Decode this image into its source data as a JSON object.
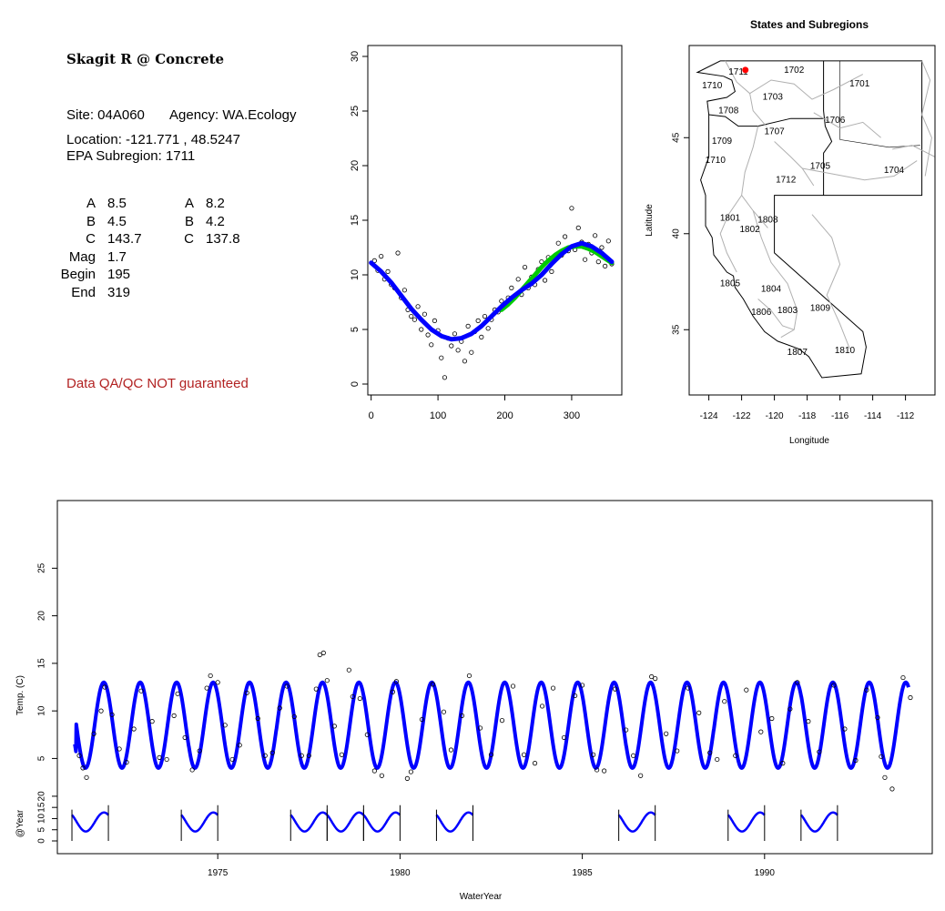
{
  "info": {
    "site_title": "Skagit R @ Concrete",
    "site_line": "Site: 04A060",
    "agency_line": "Agency: WA.Ecology",
    "location_line": "Location: -121.771 , 48.5247",
    "subregion_line": "EPA Subregion: 1711",
    "params_left": [
      {
        "label": "A",
        "value": "8.5"
      },
      {
        "label": "B",
        "value": "4.5"
      },
      {
        "label": "C",
        "value": "143.7"
      },
      {
        "label": "Mag",
        "value": "1.7"
      },
      {
        "label": "Begin",
        "value": "195"
      },
      {
        "label": "End",
        "value": "319"
      }
    ],
    "params_right": [
      {
        "label": "A",
        "value": "8.2"
      },
      {
        "label": "B",
        "value": "4.2"
      },
      {
        "label": "C",
        "value": "137.8"
      }
    ],
    "qa_note": "Data QA/QC NOT guaranteed",
    "qa_color": "#b22222"
  },
  "chart_data": [
    {
      "type": "scatter",
      "title": "",
      "xlabel": "",
      "ylabel": "",
      "xlim": [
        -5,
        375
      ],
      "ylim": [
        -1,
        31
      ],
      "xticks": [
        0,
        100,
        200,
        300
      ],
      "yticks": [
        0,
        5,
        10,
        15,
        20,
        25,
        30
      ],
      "grid": false,
      "series": [
        {
          "kind": "points",
          "marker": "open-circle",
          "color": "#000000",
          "x": [
            5,
            10,
            15,
            20,
            25,
            30,
            35,
            40,
            45,
            50,
            55,
            60,
            65,
            70,
            75,
            80,
            85,
            90,
            95,
            100,
            105,
            110,
            115,
            120,
            125,
            130,
            135,
            140,
            145,
            150,
            155,
            160,
            165,
            170,
            175,
            180,
            185,
            190,
            195,
            200,
            205,
            210,
            215,
            220,
            225,
            230,
            235,
            240,
            245,
            250,
            255,
            260,
            265,
            270,
            275,
            280,
            285,
            290,
            295,
            300,
            305,
            310,
            315,
            320,
            325,
            330,
            335,
            340,
            345,
            350,
            355,
            360
          ],
          "y": [
            11.3,
            10.4,
            11.7,
            9.6,
            10.3,
            9.1,
            8.8,
            12.0,
            7.9,
            8.6,
            6.8,
            6.2,
            5.9,
            7.1,
            5.0,
            6.4,
            4.5,
            3.6,
            5.8,
            4.9,
            2.4,
            0.6,
            4.2,
            3.5,
            4.6,
            3.1,
            3.9,
            2.1,
            5.3,
            2.9,
            4.8,
            5.8,
            4.3,
            6.2,
            5.1,
            5.9,
            6.8,
            6.6,
            7.6,
            7.1,
            7.9,
            8.8,
            8.1,
            9.6,
            8.2,
            10.7,
            8.8,
            9.8,
            9.1,
            10.5,
            11.2,
            9.5,
            11.6,
            10.3,
            11.4,
            12.9,
            11.8,
            13.5,
            12.2,
            16.1,
            12.3,
            14.3,
            13.0,
            11.4,
            12.8,
            12.0,
            13.6,
            11.2,
            12.5,
            10.8,
            13.1,
            11.0
          ]
        },
        {
          "kind": "line",
          "name": "",
          "color": "#00cc00",
          "x": [
            195,
            205,
            215,
            225,
            235,
            245,
            255,
            265,
            275,
            285,
            295,
            305,
            315,
            325,
            335,
            345,
            355,
            360
          ],
          "y": [
            6.8,
            7.3,
            7.9,
            8.6,
            9.3,
            10.0,
            10.7,
            11.3,
            11.8,
            12.2,
            12.5,
            12.6,
            12.6,
            12.4,
            12.1,
            11.7,
            11.3,
            11.1
          ]
        },
        {
          "kind": "line",
          "name": "",
          "color": "#0000ff",
          "x": [
            0,
            15,
            30,
            45,
            60,
            75,
            90,
            105,
            120,
            135,
            150,
            165,
            180,
            195,
            210,
            225,
            240,
            255,
            270,
            285,
            300,
            315,
            330,
            345,
            360
          ],
          "y": [
            11.1,
            10.3,
            9.3,
            8.1,
            6.9,
            5.9,
            5.0,
            4.4,
            4.1,
            4.2,
            4.6,
            5.3,
            6.2,
            7.1,
            7.9,
            8.6,
            9.2,
            10.0,
            11.0,
            11.9,
            12.6,
            12.9,
            12.6,
            12.0,
            11.2
          ]
        }
      ]
    },
    {
      "type": "map",
      "title": "States and Subregions",
      "xlabel": "Longitude",
      "ylabel": "Latitude",
      "xlim": [
        -125.2,
        -110.2
      ],
      "ylim": [
        31.6,
        49.8
      ],
      "xticks": [
        -124,
        -122,
        -120,
        -118,
        -116,
        -114,
        -112
      ],
      "yticks": [
        35,
        40,
        45
      ],
      "site_marker": {
        "lon": -121.771,
        "lat": 48.5247,
        "color": "#ff0000"
      },
      "region_labels": [
        {
          "text": "1711",
          "lon": -122.2,
          "lat": 48.4
        },
        {
          "text": "1702",
          "lon": -118.8,
          "lat": 48.5
        },
        {
          "text": "1701",
          "lon": -114.8,
          "lat": 47.8
        },
        {
          "text": "1710",
          "lon": -123.8,
          "lat": 47.7
        },
        {
          "text": "1703",
          "lon": -120.1,
          "lat": 47.1
        },
        {
          "text": "1708",
          "lon": -122.8,
          "lat": 46.4
        },
        {
          "text": "1706",
          "lon": -116.3,
          "lat": 45.9
        },
        {
          "text": "1707",
          "lon": -120.0,
          "lat": 45.3
        },
        {
          "text": "1709",
          "lon": -123.2,
          "lat": 44.8
        },
        {
          "text": "1710",
          "lon": -123.6,
          "lat": 43.8
        },
        {
          "text": "1705",
          "lon": -117.2,
          "lat": 43.5
        },
        {
          "text": "1704",
          "lon": -112.7,
          "lat": 43.3
        },
        {
          "text": "1712",
          "lon": -119.3,
          "lat": 42.8
        },
        {
          "text": "1801",
          "lon": -122.7,
          "lat": 40.8
        },
        {
          "text": "1808",
          "lon": -120.4,
          "lat": 40.7
        },
        {
          "text": "1802",
          "lon": -121.5,
          "lat": 40.2
        },
        {
          "text": "1805",
          "lon": -122.7,
          "lat": 37.4
        },
        {
          "text": "1804",
          "lon": -120.2,
          "lat": 37.1
        },
        {
          "text": "1806",
          "lon": -120.8,
          "lat": 35.9
        },
        {
          "text": "1803",
          "lon": -119.2,
          "lat": 36.0
        },
        {
          "text": "1809",
          "lon": -117.2,
          "lat": 36.1
        },
        {
          "text": "1807",
          "lon": -118.6,
          "lat": 33.8
        },
        {
          "text": "1810",
          "lon": -115.7,
          "lat": 33.9
        }
      ]
    },
    {
      "type": "line",
      "title": "",
      "xlabel": "WaterYear",
      "ylabel": "Temp. (C)",
      "ylabel2": "@Year",
      "xlim": [
        1970.6,
        1994.6
      ],
      "ylim": [
        1.5,
        30.2
      ],
      "xticks": [
        1975,
        1980,
        1985,
        1990
      ],
      "yticks": [
        5,
        10,
        15,
        20,
        25
      ],
      "yticks2": [
        0,
        5,
        10,
        15,
        20
      ],
      "grid": false,
      "fit": {
        "color": "#0000ff",
        "start": 1971.08,
        "end": 1993.95,
        "mean": 8.5,
        "amplitude": 4.5,
        "peak_day": 318.7,
        "start_value": 6.5
      },
      "observations": {
        "marker": "open-circle",
        "x": [
          1971.2,
          1971.3,
          1971.4,
          1971.6,
          1971.8,
          1971.9,
          1972.1,
          1972.3,
          1972.5,
          1972.7,
          1972.9,
          1973.2,
          1973.4,
          1973.6,
          1973.8,
          1973.9,
          1974.1,
          1974.3,
          1974.5,
          1974.7,
          1974.8,
          1975.0,
          1975.2,
          1975.4,
          1975.6,
          1975.8,
          1976.1,
          1976.3,
          1976.5,
          1976.7,
          1976.9,
          1977.1,
          1977.3,
          1977.5,
          1977.7,
          1977.8,
          1977.9,
          1978.0,
          1978.2,
          1978.4,
          1978.6,
          1978.7,
          1978.9,
          1979.1,
          1979.3,
          1979.5,
          1979.8,
          1979.9,
          1980.2,
          1980.3,
          1980.6,
          1980.9,
          1981.2,
          1981.4,
          1981.7,
          1981.9,
          1982.2,
          1982.5,
          1982.8,
          1983.1,
          1983.4,
          1983.7,
          1983.9,
          1984.2,
          1984.5,
          1984.8,
          1985.0,
          1985.3,
          1985.4,
          1985.6,
          1985.9,
          1986.2,
          1986.4,
          1986.6,
          1986.9,
          1987.0,
          1987.3,
          1987.6,
          1987.9,
          1988.2,
          1988.5,
          1988.7,
          1988.9,
          1989.2,
          1989.5,
          1989.9,
          1990.2,
          1990.5,
          1990.7,
          1990.9,
          1991.2,
          1991.5,
          1991.9,
          1992.2,
          1992.5,
          1992.8,
          1993.1,
          1993.2,
          1993.3,
          1993.5,
          1993.8,
          1994.0
        ],
        "y": [
          5.3,
          4.0,
          3.0,
          7.6,
          10.0,
          12.5,
          9.6,
          6.0,
          4.6,
          8.1,
          12.1,
          8.9,
          5.1,
          4.9,
          9.5,
          11.8,
          7.2,
          3.8,
          5.8,
          12.4,
          13.7,
          13.0,
          8.5,
          4.9,
          6.4,
          11.9,
          9.2,
          5.3,
          5.6,
          10.3,
          12.6,
          9.4,
          5.3,
          5.3,
          12.3,
          15.9,
          16.1,
          13.2,
          8.4,
          5.4,
          14.3,
          11.5,
          11.3,
          7.5,
          3.7,
          3.2,
          12.0,
          13.1,
          2.9,
          3.6,
          9.1,
          12.8,
          9.9,
          5.9,
          9.5,
          13.7,
          8.2,
          5.4,
          9.0,
          12.6,
          5.4,
          4.5,
          10.5,
          12.4,
          7.2,
          11.6,
          12.7,
          5.4,
          3.8,
          3.7,
          12.3,
          8.0,
          5.3,
          3.2,
          13.6,
          13.4,
          7.6,
          5.8,
          12.4,
          9.8,
          5.6,
          4.9,
          11.0,
          5.3,
          12.2,
          7.8,
          9.2,
          4.5,
          10.2,
          13.0,
          8.9,
          5.7,
          12.7,
          8.1,
          4.8,
          12.2,
          9.3,
          5.2,
          3.0,
          1.8,
          13.5,
          11.4
        ]
      },
      "yearly_fits": [
        1972,
        1975,
        1978,
        1979,
        1980,
        1982,
        1987,
        1990,
        1992
      ]
    }
  ]
}
